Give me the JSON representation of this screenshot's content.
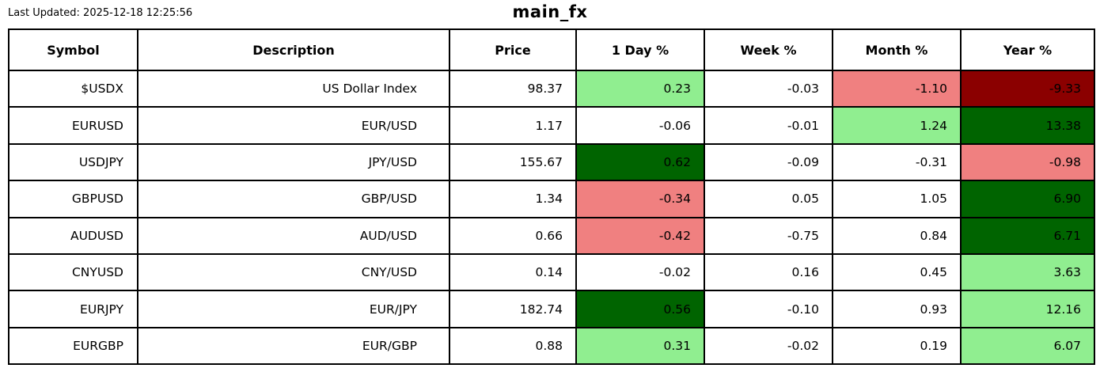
{
  "header": {
    "last_updated": "Last Updated: 2025-12-18 12:25:56"
  },
  "colors": {
    "strong_up": "#006400",
    "up": "#90EE90",
    "neutral": "#FFFFFF",
    "down": "#F08080",
    "strong_down": "#8B0000"
  },
  "chart_data": {
    "type": "table",
    "title": "main_fx",
    "columns": [
      "Symbol",
      "Description",
      "Price",
      "1 Day %",
      "Week %",
      "Month %",
      "Year %"
    ],
    "pct_column_keys": [
      "day1",
      "week",
      "month",
      "year"
    ],
    "rows": [
      {
        "symbol": "$USDX",
        "description": "US Dollar Index",
        "price": "98.37",
        "pct": [
          {
            "v": "0.23",
            "c": "up"
          },
          {
            "v": "-0.03",
            "c": "neutral"
          },
          {
            "v": "-1.10",
            "c": "down"
          },
          {
            "v": "-9.33",
            "c": "strong_down"
          }
        ]
      },
      {
        "symbol": "EURUSD",
        "description": "EUR/USD",
        "price": "1.17",
        "pct": [
          {
            "v": "-0.06",
            "c": "neutral"
          },
          {
            "v": "-0.01",
            "c": "neutral"
          },
          {
            "v": "1.24",
            "c": "up"
          },
          {
            "v": "13.38",
            "c": "strong_up"
          }
        ]
      },
      {
        "symbol": "USDJPY",
        "description": "JPY/USD",
        "price": "155.67",
        "pct": [
          {
            "v": "0.62",
            "c": "strong_up"
          },
          {
            "v": "-0.09",
            "c": "neutral"
          },
          {
            "v": "-0.31",
            "c": "neutral"
          },
          {
            "v": "-0.98",
            "c": "down"
          }
        ]
      },
      {
        "symbol": "GBPUSD",
        "description": "GBP/USD",
        "price": "1.34",
        "pct": [
          {
            "v": "-0.34",
            "c": "down"
          },
          {
            "v": "0.05",
            "c": "neutral"
          },
          {
            "v": "1.05",
            "c": "neutral"
          },
          {
            "v": "6.90",
            "c": "strong_up"
          }
        ]
      },
      {
        "symbol": "AUDUSD",
        "description": "AUD/USD",
        "price": "0.66",
        "pct": [
          {
            "v": "-0.42",
            "c": "down"
          },
          {
            "v": "-0.75",
            "c": "neutral"
          },
          {
            "v": "0.84",
            "c": "neutral"
          },
          {
            "v": "6.71",
            "c": "strong_up"
          }
        ]
      },
      {
        "symbol": "CNYUSD",
        "description": "CNY/USD",
        "price": "0.14",
        "pct": [
          {
            "v": "-0.02",
            "c": "neutral"
          },
          {
            "v": "0.16",
            "c": "neutral"
          },
          {
            "v": "0.45",
            "c": "neutral"
          },
          {
            "v": "3.63",
            "c": "up"
          }
        ]
      },
      {
        "symbol": "EURJPY",
        "description": "EUR/JPY",
        "price": "182.74",
        "pct": [
          {
            "v": "0.56",
            "c": "strong_up"
          },
          {
            "v": "-0.10",
            "c": "neutral"
          },
          {
            "v": "0.93",
            "c": "neutral"
          },
          {
            "v": "12.16",
            "c": "up"
          }
        ]
      },
      {
        "symbol": "EURGBP",
        "description": "EUR/GBP",
        "price": "0.88",
        "pct": [
          {
            "v": "0.31",
            "c": "up"
          },
          {
            "v": "-0.02",
            "c": "neutral"
          },
          {
            "v": "0.19",
            "c": "neutral"
          },
          {
            "v": "6.07",
            "c": "up"
          }
        ]
      }
    ]
  }
}
